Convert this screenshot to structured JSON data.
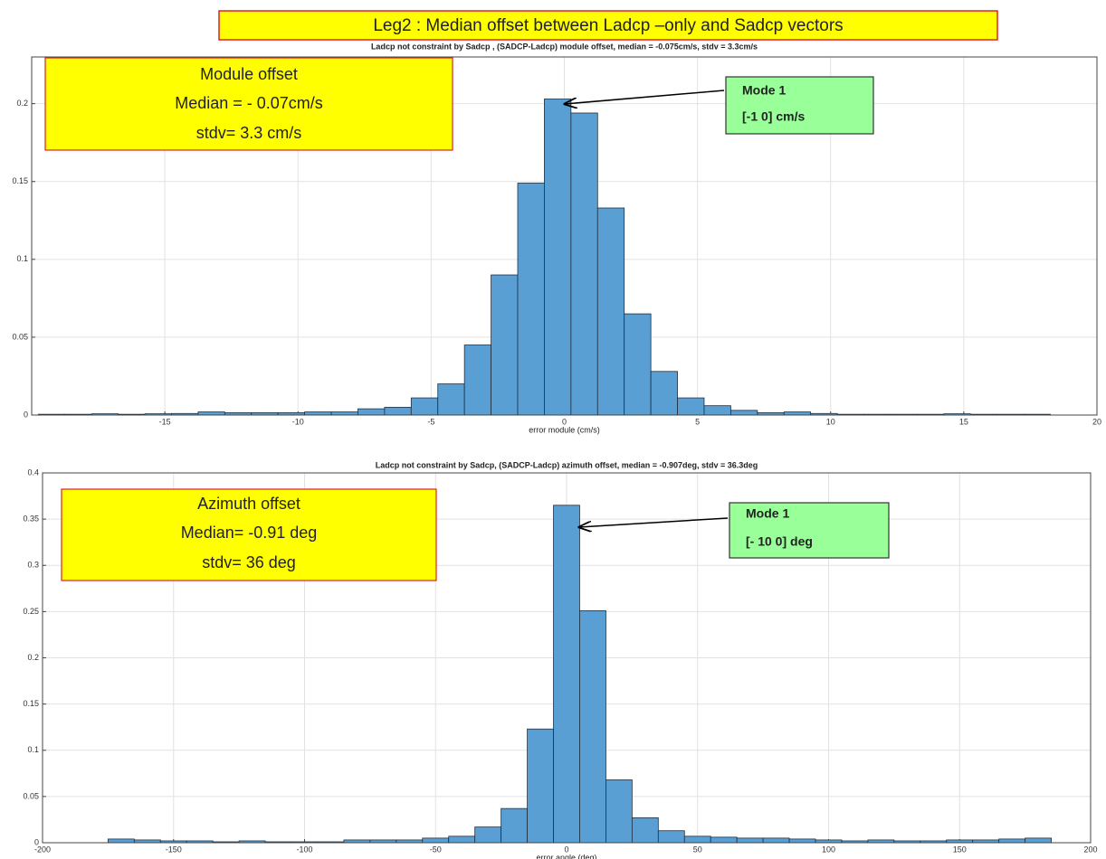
{
  "title": "Leg2 : Median offset between Ladcp –only  and Sadcp   vectors",
  "chart_data": [
    {
      "type": "histogram",
      "title": "Ladcp not constraint by Sadcp ,   (SADCP-Ladcp) module offset,    median = -0.075cm/s,    stdv = 3.3cm/s",
      "xlabel": "error module (cm/s)",
      "bins": [
        -19.75,
        -18.75,
        -17.75,
        -16.75,
        -15.75,
        -14.75,
        -13.75,
        -12.75,
        -11.75,
        -10.75,
        -9.75,
        -8.75,
        -7.75,
        -6.75,
        -5.75,
        -4.75,
        -3.75,
        -2.75,
        -1.75,
        -0.75,
        0.25,
        1.25,
        2.25,
        3.25,
        4.25,
        5.25,
        6.25,
        7.25,
        8.25,
        9.25,
        10.25,
        11.25,
        12.25,
        13.25,
        14.25,
        15.25,
        16.25,
        17.25,
        18.25
      ],
      "values": [
        0.0005,
        0.0005,
        0.0008,
        0.0005,
        0.0008,
        0.001,
        0.002,
        0.0015,
        0.0015,
        0.0015,
        0.002,
        0.002,
        0.004,
        0.005,
        0.011,
        0.02,
        0.045,
        0.09,
        0.149,
        0.203,
        0.194,
        0.133,
        0.065,
        0.028,
        0.011,
        0.006,
        0.003,
        0.0015,
        0.002,
        0.001,
        0.0005,
        0.0005,
        0.0005,
        0.0005,
        0.0008,
        0.0005,
        0.0005,
        0.0005
      ],
      "color": "#5a9fd4",
      "xlim": [
        -20,
        20
      ],
      "xticks": [
        -15,
        -10,
        -5,
        0,
        5,
        10,
        15,
        20
      ],
      "ylim": [
        0,
        0.23
      ],
      "yticks": [
        0,
        0.05,
        0.1,
        0.15,
        0.2
      ],
      "grid": true,
      "note": [
        "Module offset",
        "Median = - 0.07cm/s",
        "stdv= 3.3 cm/s"
      ],
      "mode": [
        "Mode 1",
        "[-1  0]  cm/s"
      ]
    },
    {
      "type": "histogram",
      "title": "Ladcp not constraint by Sadcp,   (SADCP-Ladcp) azimuth offset,    median = -0.907deg,    stdv = 36.3deg",
      "xlabel": "error angle (deg)",
      "bins": [
        -175,
        -165,
        -155,
        -145,
        -135,
        -125,
        -115,
        -105,
        -95,
        -85,
        -75,
        -65,
        -55,
        -45,
        -35,
        -25,
        -15,
        -5,
        5,
        15,
        25,
        35,
        45,
        55,
        65,
        75,
        85,
        95,
        105,
        115,
        125,
        135,
        145,
        155,
        165,
        175,
        185
      ],
      "values": [
        0.004,
        0.003,
        0.002,
        0.002,
        0.001,
        0.002,
        0.001,
        0.001,
        0.001,
        0.003,
        0.003,
        0.003,
        0.005,
        0.007,
        0.017,
        0.037,
        0.123,
        0.365,
        0.251,
        0.068,
        0.027,
        0.013,
        0.007,
        0.006,
        0.005,
        0.005,
        0.004,
        0.003,
        0.002,
        0.003,
        0.002,
        0.002,
        0.003,
        0.003,
        0.004,
        0.005
      ],
      "color": "#5a9fd4",
      "xlim": [
        -200,
        200
      ],
      "xticks": [
        -200,
        -150,
        -100,
        -50,
        0,
        50,
        100,
        150,
        200
      ],
      "ylim": [
        0,
        0.4
      ],
      "yticks": [
        0,
        0.05,
        0.1,
        0.15,
        0.2,
        0.25,
        0.3,
        0.35,
        0.4
      ],
      "grid": true,
      "note": [
        "Azimuth offset",
        "Median= -0.91  deg",
        "stdv=  36 deg"
      ],
      "mode": [
        "Mode 1",
        "[- 10  0]   deg"
      ]
    }
  ]
}
